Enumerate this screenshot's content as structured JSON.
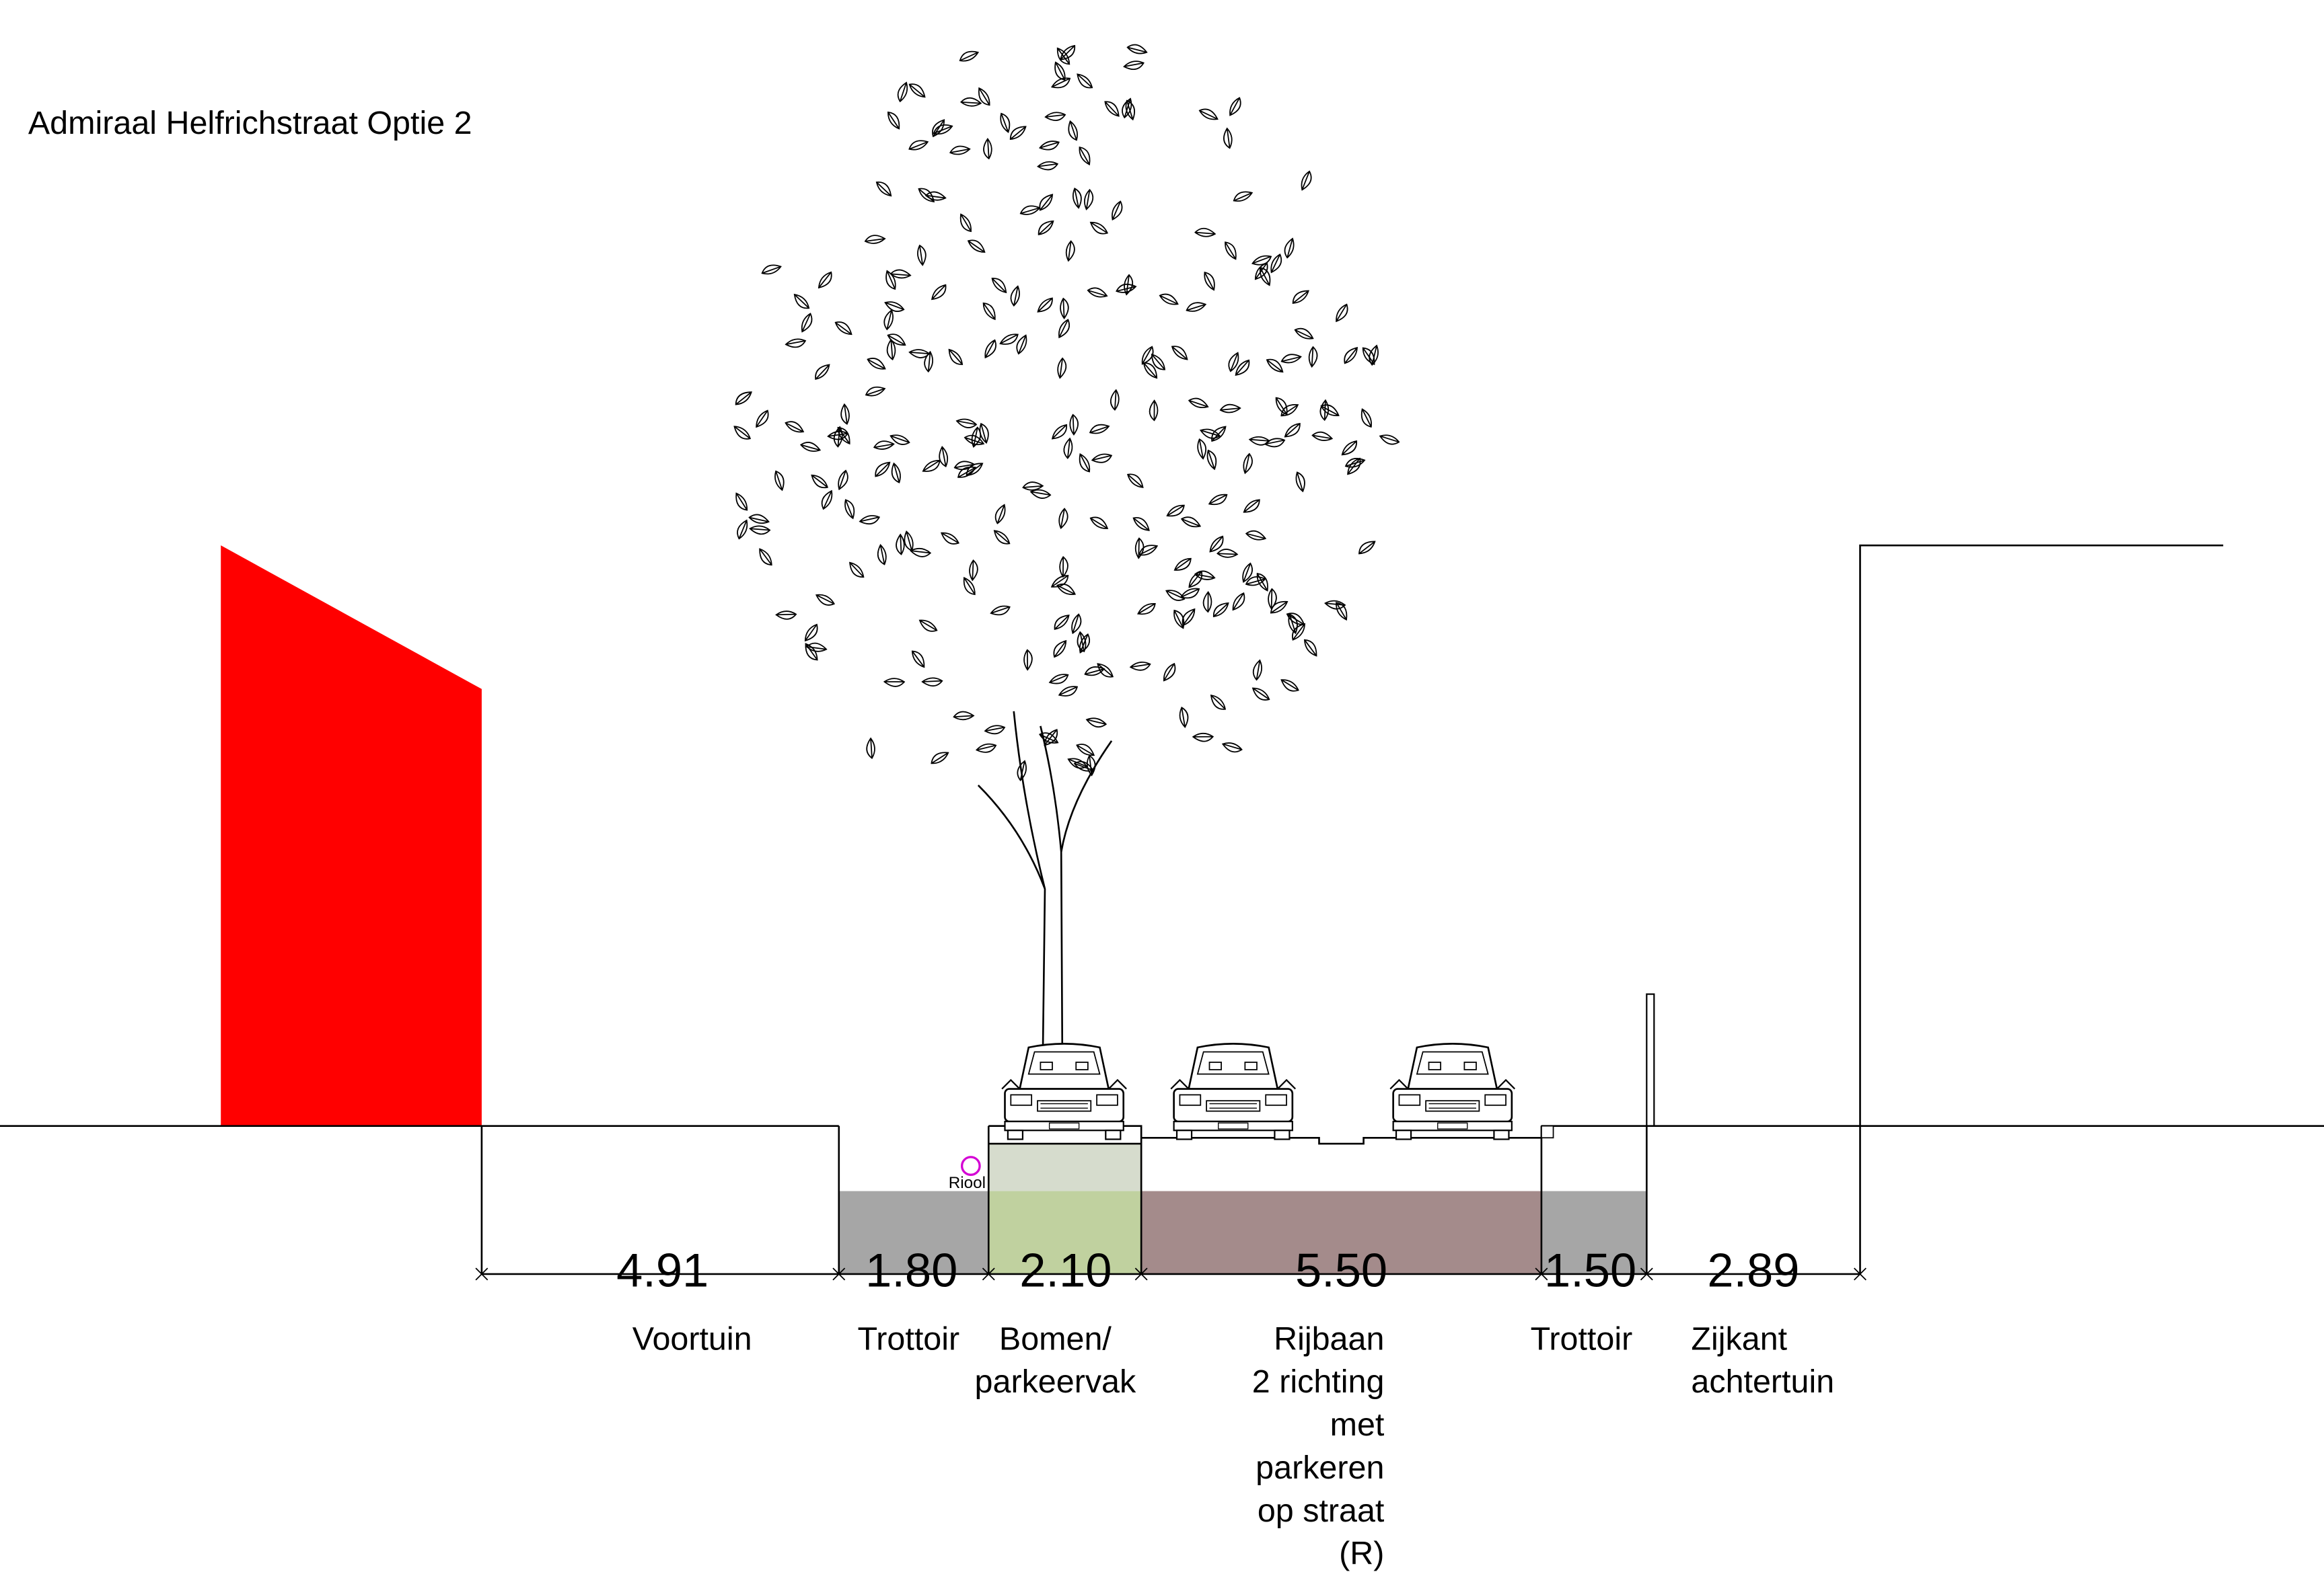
{
  "title": "Admiraal Helfrichstraat Optie 2",
  "sewer_label": "Riool",
  "segments": [
    {
      "width": "4.91",
      "label": [
        "Voortuin"
      ]
    },
    {
      "width": "1.80",
      "label": [
        "Trottoir"
      ]
    },
    {
      "width": "2.10",
      "label": [
        "Bomen/",
        "parkeervak"
      ]
    },
    {
      "width": "5.50",
      "label": [
        "Rijbaan",
        "2 richting",
        "met",
        "parkeren",
        "op straat",
        "(R)"
      ]
    },
    {
      "width": "1.50",
      "label": [
        "Trottoir"
      ]
    },
    {
      "width": "2.89",
      "label": [
        "Zijkant",
        "achtertuin"
      ]
    }
  ]
}
